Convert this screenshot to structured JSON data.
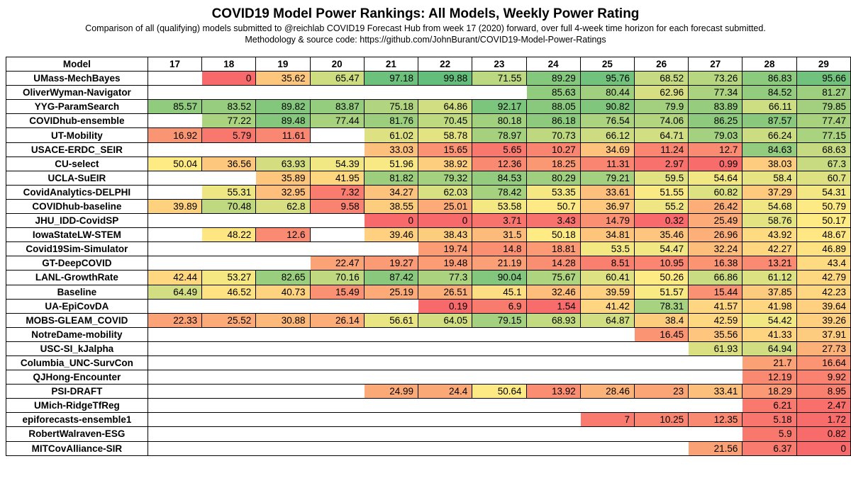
{
  "header": {
    "title": "COVID19 Model Power Rankings: All Models, Weekly Power Rating",
    "subtitle_line1": "Comparison of all (qualifying) models submitted to @reichlab COVID19 Forecast Hub from week 17 (2020) forward, over full 4-week time horizon for each forecast submitted.",
    "subtitle_line2": "Methodology & source code: https://github.com/JohnBurant/COVID19-Model-Power-Ratings"
  },
  "chart_data": {
    "type": "heatmap",
    "title": "COVID19 Model Power Rankings: All Models, Weekly Power Rating",
    "row_header": "Model",
    "columns": [
      "17",
      "18",
      "19",
      "20",
      "21",
      "22",
      "23",
      "24",
      "25",
      "26",
      "27",
      "28",
      "29"
    ],
    "value_range": [
      0,
      100
    ],
    "color_scale": {
      "low": "#f8696b",
      "mid": "#ffeb84",
      "high": "#63be7b"
    },
    "rows": [
      {
        "model": "UMass-MechBayes",
        "values": [
          null,
          "0",
          "35.62",
          "65.47",
          "97.18",
          "99.88",
          "71.55",
          "89.29",
          "95.76",
          "68.52",
          "73.26",
          "86.83",
          "95.66"
        ]
      },
      {
        "model": "OliverWyman-Navigator",
        "values": [
          null,
          null,
          null,
          null,
          null,
          null,
          null,
          "85.63",
          "80.44",
          "62.96",
          "77.34",
          "84.52",
          "81.27"
        ]
      },
      {
        "model": "YYG-ParamSearch",
        "values": [
          "85.57",
          "83.52",
          "89.82",
          "83.87",
          "75.18",
          "64.86",
          "92.17",
          "88.05",
          "90.82",
          "79.9",
          "83.89",
          "66.11",
          "79.85"
        ]
      },
      {
        "model": "COVIDhub-ensemble",
        "values": [
          null,
          "77.22",
          "89.48",
          "77.44",
          "81.76",
          "70.45",
          "80.18",
          "86.18",
          "76.54",
          "74.06",
          "86.25",
          "87.57",
          "77.47"
        ]
      },
      {
        "model": "UT-Mobility",
        "values": [
          "16.92",
          "5.79",
          "11.61",
          null,
          "61.02",
          "58.78",
          "78.97",
          "70.73",
          "66.12",
          "64.71",
          "79.03",
          "66.24",
          "77.15"
        ]
      },
      {
        "model": "USACE-ERDC_SEIR",
        "values": [
          null,
          null,
          null,
          null,
          "33.03",
          "15.65",
          "5.65",
          "10.27",
          "34.69",
          "11.24",
          "12.7",
          "84.63",
          "68.63"
        ]
      },
      {
        "model": "CU-select",
        "values": [
          "50.04",
          "36.56",
          "63.93",
          "54.39",
          "51.96",
          "38.92",
          "12.36",
          "18.25",
          "11.31",
          "2.97",
          "0.99",
          "38.03",
          "67.3"
        ]
      },
      {
        "model": "UCLA-SuEIR",
        "values": [
          null,
          null,
          "35.89",
          "41.95",
          "81.82",
          "79.32",
          "84.53",
          "80.29",
          "79.21",
          "59.5",
          "54.64",
          "58.4",
          "60.7"
        ]
      },
      {
        "model": "CovidAnalytics-DELPHI",
        "values": [
          null,
          "55.31",
          "32.95",
          "7.32",
          "34.27",
          "62.03",
          "78.42",
          "53.35",
          "33.61",
          "51.55",
          "60.82",
          "37.29",
          "54.31"
        ]
      },
      {
        "model": "COVIDhub-baseline",
        "values": [
          "39.89",
          "70.48",
          "62.8",
          "9.58",
          "38.55",
          "25.01",
          "53.58",
          "50.7",
          "36.97",
          "55.2",
          "26.42",
          "54.68",
          "50.79"
        ]
      },
      {
        "model": "JHU_IDD-CovidSP",
        "values": [
          null,
          null,
          null,
          null,
          "0",
          "0",
          "3.71",
          "3.43",
          "14.79",
          "0.32",
          "25.49",
          "58.76",
          "50.17"
        ]
      },
      {
        "model": "IowaStateLW-STEM",
        "values": [
          null,
          "48.22",
          "12.6",
          null,
          "39.46",
          "38.43",
          "31.5",
          "50.18",
          "34.81",
          "35.46",
          "26.96",
          "43.92",
          "48.67"
        ]
      },
      {
        "model": "Covid19Sim-Simulator",
        "values": [
          null,
          null,
          null,
          null,
          null,
          "19.74",
          "14.8",
          "18.81",
          "53.5",
          "54.47",
          "32.24",
          "42.27",
          "46.89"
        ]
      },
      {
        "model": "GT-DeepCOVID",
        "values": [
          null,
          null,
          null,
          "22.47",
          "19.27",
          "19.48",
          "21.19",
          "14.28",
          "8.51",
          "10.95",
          "16.38",
          "13.21",
          "43.4"
        ]
      },
      {
        "model": "LANL-GrowthRate",
        "values": [
          "42.44",
          "53.27",
          "82.65",
          "70.16",
          "87.42",
          "77.3",
          "90.04",
          "75.67",
          "60.41",
          "50.26",
          "66.86",
          "61.12",
          "42.79"
        ]
      },
      {
        "model": "Baseline",
        "values": [
          "64.49",
          "46.52",
          "40.73",
          "15.49",
          "25.19",
          "26.51",
          "45.1",
          "32.46",
          "39.59",
          "51.57",
          "15.44",
          "37.85",
          "42.23"
        ]
      },
      {
        "model": "UA-EpiCovDA",
        "values": [
          null,
          null,
          null,
          null,
          null,
          "0.19",
          "6.9",
          "1.54",
          "41.42",
          "78.31",
          "41.57",
          "41.98",
          "39.64"
        ]
      },
      {
        "model": "MOBS-GLEAM_COVID",
        "values": [
          "22.33",
          "25.52",
          "30.88",
          "26.14",
          "56.61",
          "64.05",
          "79.15",
          "68.93",
          "64.87",
          "38.4",
          "42.59",
          "54.42",
          "39.26"
        ]
      },
      {
        "model": "NotreDame-mobility",
        "values": [
          null,
          null,
          null,
          null,
          null,
          null,
          null,
          null,
          null,
          "16.45",
          "35.56",
          "41.33",
          "37.91"
        ]
      },
      {
        "model": "USC-SI_kJalpha",
        "values": [
          null,
          null,
          null,
          null,
          null,
          null,
          null,
          null,
          null,
          null,
          "61.93",
          "64.94",
          "27.73"
        ]
      },
      {
        "model": "Columbia_UNC-SurvCon",
        "values": [
          null,
          null,
          null,
          null,
          null,
          null,
          null,
          null,
          null,
          null,
          null,
          "21.7",
          "16.64"
        ]
      },
      {
        "model": "QJHong-Encounter",
        "values": [
          null,
          null,
          null,
          null,
          null,
          null,
          null,
          null,
          null,
          null,
          null,
          "12.19",
          "9.92"
        ]
      },
      {
        "model": "PSI-DRAFT",
        "values": [
          null,
          null,
          null,
          null,
          "24.99",
          "24.4",
          "50.64",
          "13.92",
          "28.46",
          "23",
          "33.41",
          "18.29",
          "8.95"
        ]
      },
      {
        "model": "UMich-RidgeTfReg",
        "values": [
          null,
          null,
          null,
          null,
          null,
          null,
          null,
          null,
          null,
          null,
          null,
          "6.21",
          "2.47"
        ]
      },
      {
        "model": "epiforecasts-ensemble1",
        "values": [
          null,
          null,
          null,
          null,
          null,
          null,
          null,
          null,
          "7",
          "10.25",
          "12.35",
          "5.18",
          "1.72"
        ]
      },
      {
        "model": "RobertWalraven-ESG",
        "values": [
          null,
          null,
          null,
          null,
          null,
          null,
          null,
          null,
          null,
          null,
          null,
          "5.9",
          "0.82"
        ]
      },
      {
        "model": "MITCovAlliance-SIR",
        "values": [
          null,
          null,
          null,
          null,
          null,
          null,
          null,
          null,
          null,
          null,
          "21.56",
          "6.37",
          "0"
        ]
      }
    ]
  }
}
